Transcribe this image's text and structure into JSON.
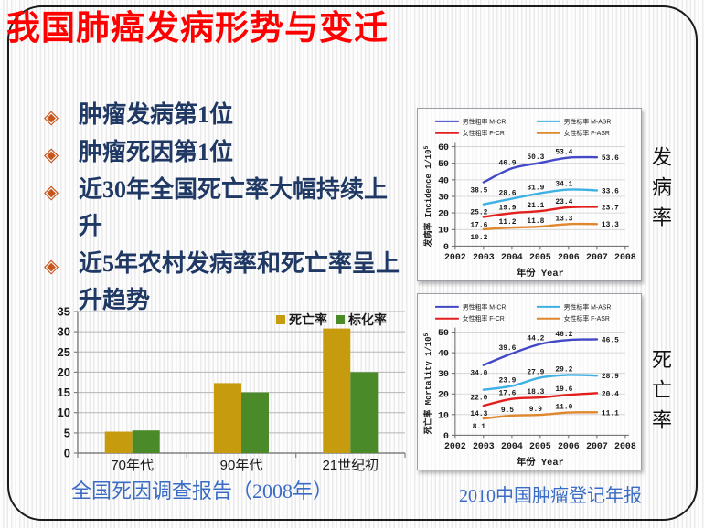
{
  "slide": {
    "title": "我国肺癌发病形势与变迁",
    "bullet_icon": "◈",
    "bullets": [
      "肿瘤发病第1位",
      "肿瘤死因第1位",
      "近30年全国死亡率大幅持续上升",
      "近5年农村发病率和死亡率呈上升趋势"
    ],
    "left_caption": "全国死因调查报告（2008年）",
    "right_caption": "2010中国肿瘤登记年报",
    "side_label_top": "发病率",
    "side_label_bottom": "死亡率"
  },
  "colors": {
    "title_red": "#fe0000",
    "bullet_text": "#1f3864",
    "bullet_icon": "#c8551a",
    "caption_blue": "#3b6cc5",
    "bar_mortality_gold": "#c79b0e",
    "bar_standardized_green": "#4a8a28",
    "line_male_crude": "#4248c8",
    "line_female_crude": "#e31e1e",
    "line_male_asr": "#3fb0e4",
    "line_female_asr": "#e0862c"
  },
  "chart_data": [
    {
      "id": "decade-bar",
      "type": "bar",
      "title": "",
      "categories": [
        "70年代",
        "90年代",
        "21世纪初"
      ],
      "series": [
        {
          "name": "死亡率",
          "color": "#c79b0e",
          "values": [
            5.3,
            17.3,
            30.8
          ]
        },
        {
          "name": "标化率",
          "color": "#4a8a28",
          "values": [
            5.6,
            15.0,
            20.0
          ]
        }
      ],
      "ylim": [
        0,
        35
      ],
      "ytick": 5,
      "grid": true,
      "legend_position": "top-right"
    },
    {
      "id": "incidence-line",
      "type": "line",
      "x": [
        2003,
        2004,
        2005,
        2006,
        2007
      ],
      "xlim": [
        2002,
        2008
      ],
      "xticks": [
        2002,
        2003,
        2004,
        2005,
        2006,
        2007,
        2008
      ],
      "ylim": [
        0,
        60
      ],
      "ytick": 10,
      "ylabel": "发病率 Incidence 1/10⁵",
      "xlabel": "年份 Year",
      "grid": true,
      "legend_position": "top",
      "series": [
        {
          "name": "男性粗率 M-CR",
          "color": "#4248c8",
          "values": [
            38.5,
            46.9,
            50.3,
            53.4,
            53.6
          ]
        },
        {
          "name": "女性粗率 F-CR",
          "color": "#e31e1e",
          "values": [
            17.6,
            19.9,
            21.1,
            23.4,
            23.7
          ]
        },
        {
          "name": "男性标率 M-ASR",
          "color": "#3fb0e4",
          "values": [
            25.2,
            28.6,
            31.9,
            34.1,
            33.6
          ]
        },
        {
          "name": "女性标率 F-ASR",
          "color": "#e0862c",
          "values": [
            10.2,
            11.2,
            11.8,
            13.3,
            13.3
          ]
        }
      ]
    },
    {
      "id": "mortality-line",
      "type": "line",
      "x": [
        2003,
        2004,
        2005,
        2006,
        2007
      ],
      "xlim": [
        2002,
        2008
      ],
      "xticks": [
        2002,
        2003,
        2004,
        2005,
        2006,
        2007,
        2008
      ],
      "ylim": [
        0,
        50
      ],
      "ytick": 10,
      "ylabel": "死亡率 Mortality 1/10⁵",
      "xlabel": "年份 Year",
      "grid": true,
      "legend_position": "top",
      "series": [
        {
          "name": "男性粗率 M-CR",
          "color": "#4248c8",
          "values": [
            34.0,
            39.6,
            44.2,
            46.2,
            46.5
          ]
        },
        {
          "name": "女性粗率 F-CR",
          "color": "#e31e1e",
          "values": [
            14.3,
            17.6,
            18.3,
            19.6,
            20.4
          ]
        },
        {
          "name": "男性标率 M-ASR",
          "color": "#3fb0e4",
          "values": [
            22.0,
            23.9,
            27.9,
            29.2,
            28.9
          ]
        },
        {
          "name": "女性标率 F-ASR",
          "color": "#e0862c",
          "values": [
            8.1,
            9.5,
            9.9,
            11.0,
            11.1
          ]
        }
      ]
    }
  ]
}
